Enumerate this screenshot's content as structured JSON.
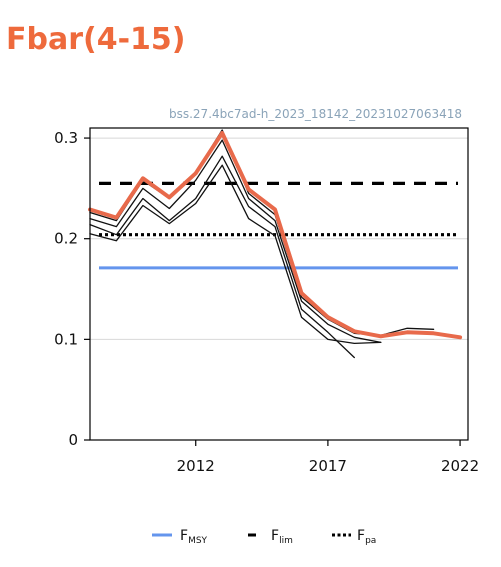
{
  "header": {
    "title": "Fbar(4-15)"
  },
  "chart_data": {
    "type": "line",
    "subtitle": "bss.27.4bc7ad-h_2023_18142_20231027063418",
    "xlabel": "",
    "ylabel": "",
    "xlim": [
      2008,
      2022.3
    ],
    "ylim": [
      0,
      0.31
    ],
    "xticks": [
      2012,
      2017,
      2022
    ],
    "yticks": [
      0,
      0.1,
      0.2,
      0.3
    ],
    "ytick_labels": [
      "0",
      "0.1",
      "0.2",
      "0.3"
    ],
    "grid": "horizontal",
    "legend_position": "bottom",
    "x": [
      2008,
      2009,
      2010,
      2011,
      2012,
      2013,
      2014,
      2015,
      2016,
      2017,
      2018,
      2019,
      2020,
      2021,
      2022
    ],
    "series": [
      {
        "name": "",
        "role": "assessment",
        "color": "#e86a4b",
        "x": [
          2008,
          2009,
          2010,
          2011,
          2012,
          2013,
          2014,
          2015,
          2016,
          2017,
          2018,
          2019,
          2020,
          2021,
          2022
        ],
        "values": [
          0.229,
          0.221,
          0.26,
          0.241,
          0.265,
          0.305,
          0.249,
          0.229,
          0.146,
          0.122,
          0.108,
          0.103,
          0.107,
          0.106,
          0.102
        ]
      },
      {
        "name": "",
        "role": "previous-run",
        "color": "#111111",
        "x": [
          2008,
          2009,
          2010,
          2011,
          2012,
          2013,
          2014,
          2015,
          2016,
          2017,
          2018,
          2019,
          2020,
          2021
        ],
        "values": [
          0.226,
          0.218,
          0.258,
          0.24,
          0.266,
          0.308,
          0.245,
          0.224,
          0.142,
          0.12,
          0.106,
          0.104,
          0.111,
          0.11
        ]
      },
      {
        "name": "",
        "role": "previous-run",
        "color": "#111111",
        "x": [
          2008,
          2009,
          2010,
          2011,
          2012,
          2013,
          2014,
          2015,
          2016,
          2017,
          2018,
          2019
        ],
        "values": [
          0.22,
          0.212,
          0.25,
          0.23,
          0.258,
          0.298,
          0.24,
          0.218,
          0.138,
          0.115,
          0.102,
          0.097
        ]
      },
      {
        "name": "",
        "role": "previous-run",
        "color": "#111111",
        "x": [
          2008,
          2009,
          2010,
          2011,
          2012,
          2013,
          2014,
          2015,
          2016,
          2017,
          2018
        ],
        "values": [
          0.214,
          0.204,
          0.24,
          0.218,
          0.24,
          0.282,
          0.232,
          0.212,
          0.13,
          0.107,
          0.082
        ]
      },
      {
        "name": "",
        "role": "previous-run",
        "color": "#111111",
        "x": [
          2008,
          2009,
          2010,
          2011,
          2012,
          2013,
          2014,
          2015,
          2016,
          2017,
          2018,
          2019
        ],
        "values": [
          0.205,
          0.198,
          0.233,
          0.215,
          0.235,
          0.273,
          0.22,
          0.203,
          0.122,
          0.1,
          0.096,
          0.097
        ]
      }
    ],
    "reference_lines": [
      {
        "name": "FMSY",
        "label_main": "F",
        "label_sub": "MSY",
        "value": 0.171,
        "color": "#6495ed",
        "style": "solid"
      },
      {
        "name": "Flim",
        "label_main": "F",
        "label_sub": "lim",
        "value": 0.255,
        "color": "#000000",
        "style": "dashed"
      },
      {
        "name": "Fpa",
        "label_main": "F",
        "label_sub": "pa",
        "value": 0.204,
        "color": "#000000",
        "style": "dotted"
      }
    ]
  }
}
